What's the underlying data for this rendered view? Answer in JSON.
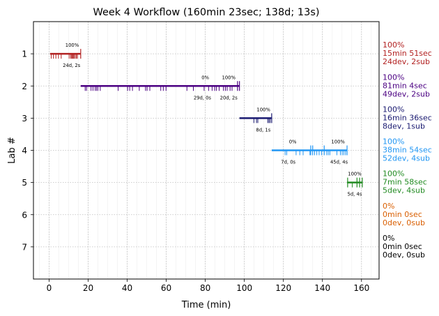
{
  "chart_data": {
    "type": "timeline",
    "title": "Week 4 Workflow (160min 23sec; 138d; 13s)",
    "xlabel": "Time (min)",
    "ylabel": "Lab #",
    "xlim": [
      -8,
      169
    ],
    "ylim": [
      8,
      0
    ],
    "xticks": [
      "0",
      "20",
      "40",
      "60",
      "80",
      "100",
      "120",
      "140",
      "160"
    ],
    "yticks": [
      "1",
      "2",
      "3",
      "4",
      "5",
      "6",
      "7"
    ],
    "grid": true,
    "labs": [
      {
        "lab": 1,
        "color": "#b22222",
        "start": 0.5,
        "end": 16.2,
        "annotations": [
          {
            "text": "100%",
            "x": 11.8,
            "pos": "above"
          },
          {
            "text": "24d, 2s",
            "x": 11.5,
            "pos": "below"
          }
        ],
        "tall_ticks": [
          16.2
        ],
        "ticks": [
          1.1,
          2.2,
          3.5,
          4.8,
          6.2,
          10.3,
          11.1,
          11.6,
          12.0,
          12.4,
          12.8,
          13.4,
          14.0,
          14.5
        ],
        "summary": [
          "100%",
          "15min 51sec",
          "24dev, 2sub"
        ]
      },
      {
        "lab": 2,
        "color": "#4b0082",
        "start": 16.2,
        "end": 97.5,
        "annotations": [
          {
            "text": "0%",
            "x": 80.0,
            "pos": "above"
          },
          {
            "text": "29d, 0s",
            "x": 78.5,
            "pos": "below"
          },
          {
            "text": "100%",
            "x": 92.0,
            "pos": "above"
          },
          {
            "text": "20d, 2s",
            "x": 92.0,
            "pos": "below"
          }
        ],
        "tall_ticks": [
          96.5,
          97.5
        ],
        "ticks": [
          18.5,
          19.2,
          21.5,
          22.5,
          23.6,
          24.3,
          25.0,
          26.2,
          35.4,
          40.2,
          41.3,
          42.7,
          46.2,
          49.4,
          50.2,
          51.6,
          57.2,
          58.5,
          59.9,
          70.6,
          73.9,
          79.4,
          81.7,
          83.5,
          84.8,
          85.7,
          87.1,
          89.3,
          90.3,
          91.2,
          92.7,
          93.7
        ],
        "summary": [
          "100%",
          "81min 4sec",
          "49dev, 2sub"
        ]
      },
      {
        "lab": 3,
        "color": "#191970",
        "start": 97.5,
        "end": 114.0,
        "annotations": [
          {
            "text": "100%",
            "x": 109.8,
            "pos": "above"
          },
          {
            "text": "8d, 1s",
            "x": 109.7,
            "pos": "below"
          }
        ],
        "tall_ticks": [
          114.0
        ],
        "ticks": [
          104.9,
          106.2,
          106.9,
          112.0,
          112.6,
          113.2
        ],
        "summary": [
          "100%",
          "16min 36sec",
          "8dev, 1sub"
        ]
      },
      {
        "lab": 4,
        "color": "#2196f3",
        "start": 114.0,
        "end": 152.6,
        "annotations": [
          {
            "text": "0%",
            "x": 124.8,
            "pos": "above"
          },
          {
            "text": "7d, 0s",
            "x": 122.5,
            "pos": "below"
          },
          {
            "text": "100%",
            "x": 148.0,
            "pos": "above"
          },
          {
            "text": "45d, 4s",
            "x": 148.5,
            "pos": "below"
          }
        ],
        "tall_ticks": [
          134.0,
          135.0,
          140.9,
          152.6
        ],
        "ticks": [
          120.9,
          121.7,
          126.5,
          128.4,
          130.1,
          133.6,
          136.0,
          137.1,
          138.3,
          139.6,
          142.2,
          143.0,
          143.8,
          147.4,
          149.2,
          150.1,
          150.9,
          151.8
        ],
        "summary": [
          "100%",
          "38min 54sec",
          "52dev, 4sub"
        ]
      },
      {
        "lab": 5,
        "color": "#228b22",
        "start": 152.6,
        "end": 160.5,
        "annotations": [
          {
            "text": "100%",
            "x": 156.5,
            "pos": "above"
          },
          {
            "text": "5d, 4s",
            "x": 156.5,
            "pos": "below"
          }
        ],
        "tall_ticks": [
          152.9,
          157.7,
          159.0,
          160.4
        ],
        "ticks": [
          155.3
        ],
        "summary": [
          "100%",
          "7min 58sec",
          "5dev, 4sub"
        ]
      },
      {
        "lab": 6,
        "color": "#d95f02",
        "start": null,
        "end": null,
        "annotations": [],
        "tall_ticks": [],
        "ticks": [],
        "summary": [
          "0%",
          "0min 0sec",
          "0dev, 0sub"
        ]
      },
      {
        "lab": 7,
        "color": "#000000",
        "start": null,
        "end": null,
        "annotations": [],
        "tall_ticks": [],
        "ticks": [],
        "summary": [
          "0%",
          "0min 0sec",
          "0dev, 0sub"
        ]
      }
    ]
  }
}
